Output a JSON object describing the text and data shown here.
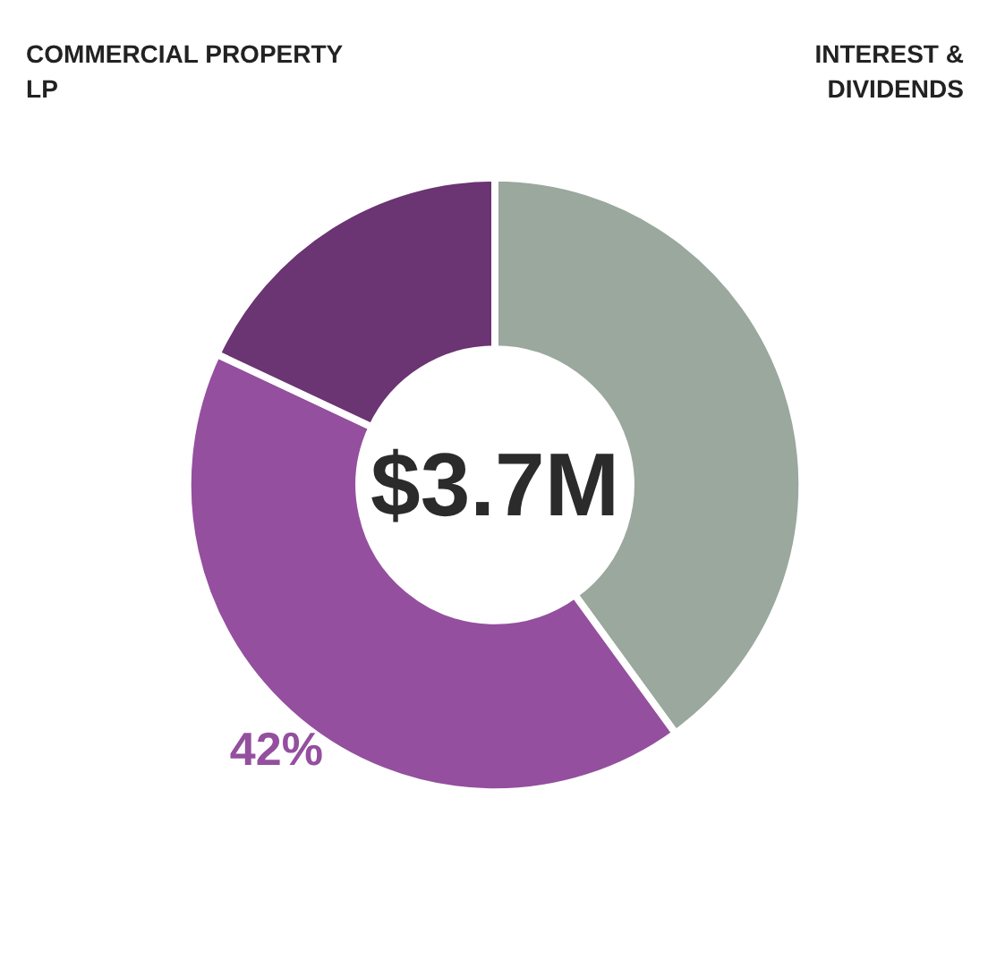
{
  "chart_data": {
    "type": "donut",
    "categories": [
      "INTEREST & DIVIDENDS",
      null,
      "COMMERCIAL PROPERTY LP"
    ],
    "values": [
      40,
      42,
      18
    ],
    "colors": [
      "#9aa89e",
      "#944f9e",
      "#6b3472"
    ],
    "value_labels": [
      null,
      "42%",
      null
    ],
    "annotations": [
      "$3.7M"
    ],
    "legend": false
  }
}
